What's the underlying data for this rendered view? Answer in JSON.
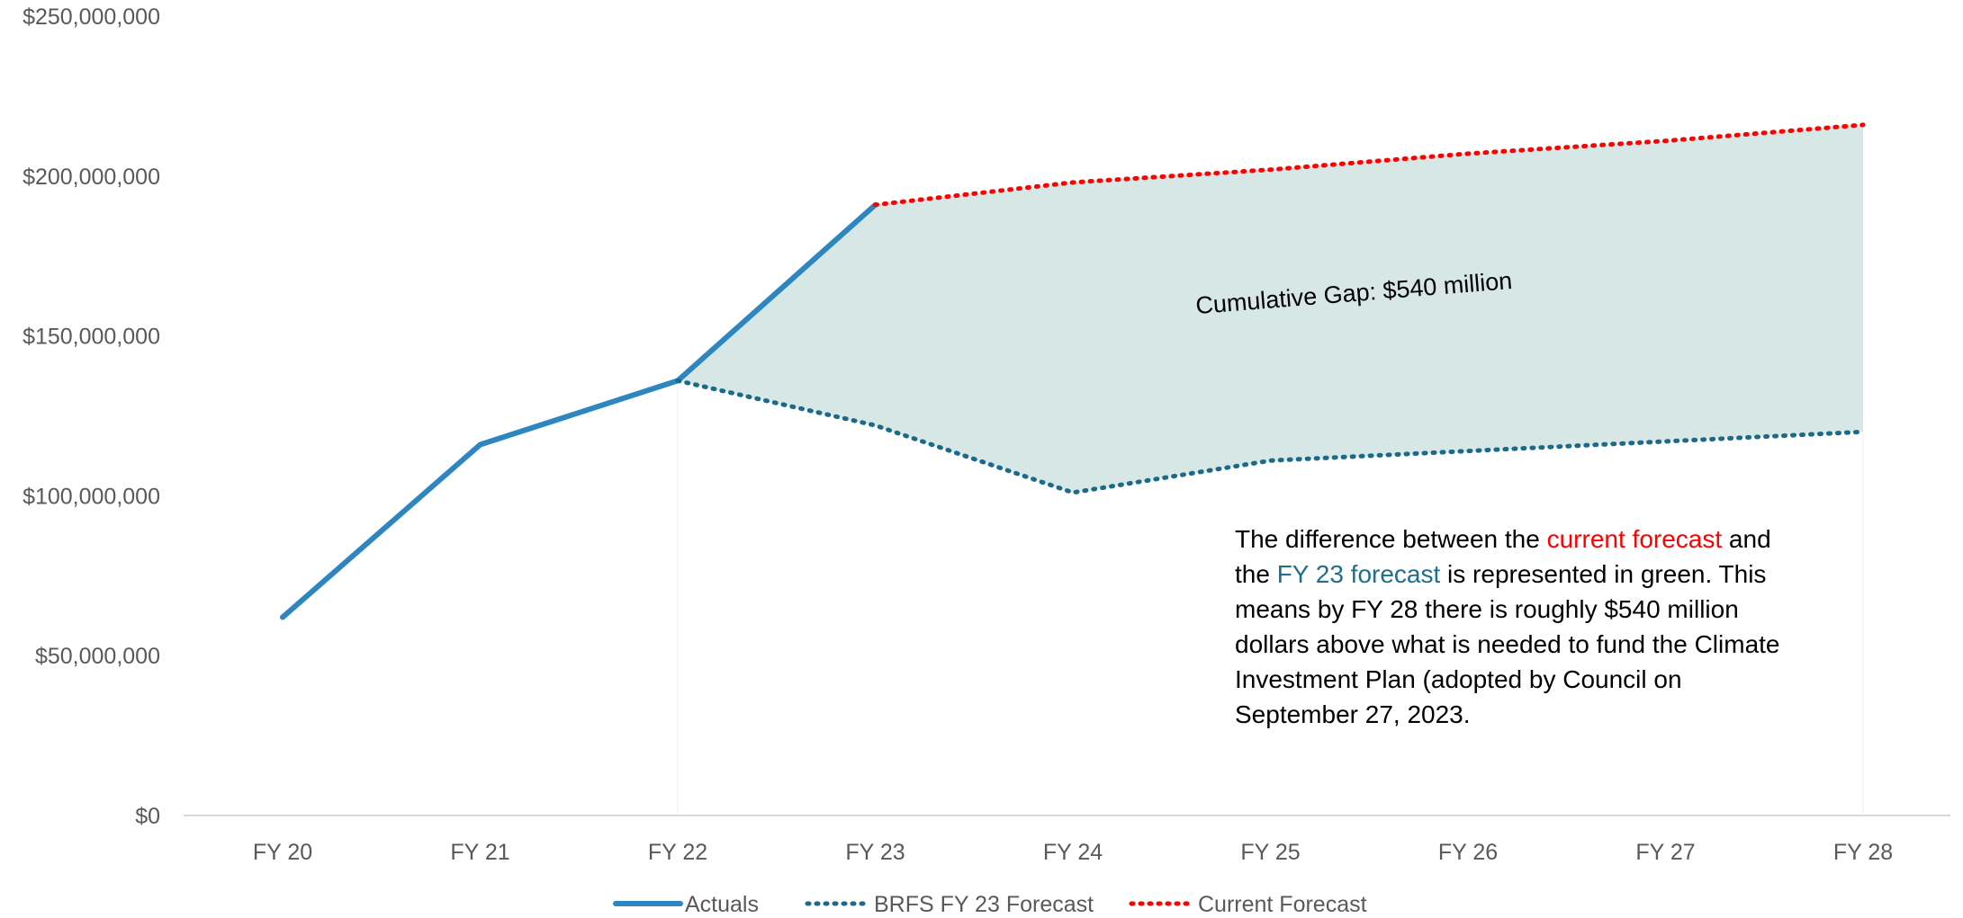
{
  "chart_data": {
    "type": "line",
    "categories": [
      "FY 20",
      "FY 21",
      "FY 22",
      "FY 23",
      "FY 24",
      "FY 25",
      "FY 26",
      "FY 27",
      "FY 28"
    ],
    "ylim": [
      0,
      250000000
    ],
    "yticks": [
      0,
      50000000,
      100000000,
      150000000,
      200000000,
      250000000
    ],
    "ytick_labels": [
      "$0",
      "$50,000,000",
      "$100,000,000",
      "$150,000,000",
      "$200,000,000",
      "$250,000,000"
    ],
    "grid": false,
    "legend_position": "bottom",
    "series": [
      {
        "name": "Actuals",
        "style": "solid",
        "color": "#2e86c1",
        "values": [
          62000000,
          116000000,
          136000000,
          191000000,
          null,
          null,
          null,
          null,
          null
        ]
      },
      {
        "name": "BRFS FY 23 Forecast",
        "style": "dotted",
        "color": "#1b6a8a",
        "values": [
          null,
          null,
          136000000,
          122000000,
          101000000,
          111000000,
          114000000,
          117000000,
          120000000
        ]
      },
      {
        "name": "Current Forecast",
        "style": "dotted",
        "color": "#ff0000",
        "values": [
          null,
          null,
          null,
          191000000,
          198000000,
          202000000,
          207000000,
          211000000,
          216000000
        ]
      }
    ],
    "shaded_area": {
      "color": "#d6e7e5",
      "label": "Cumulative Gap: $540 million"
    },
    "note": {
      "seg1": "The difference between the ",
      "seg2": "current forecast",
      "seg3": " and the ",
      "seg4": "FY 23 forecast",
      "seg5": " is represented in green. This means by FY 28 there is roughly $540 million dollars above what is needed to fund the Climate Investment Plan (adopted by Council on  September 27, 2023."
    }
  }
}
